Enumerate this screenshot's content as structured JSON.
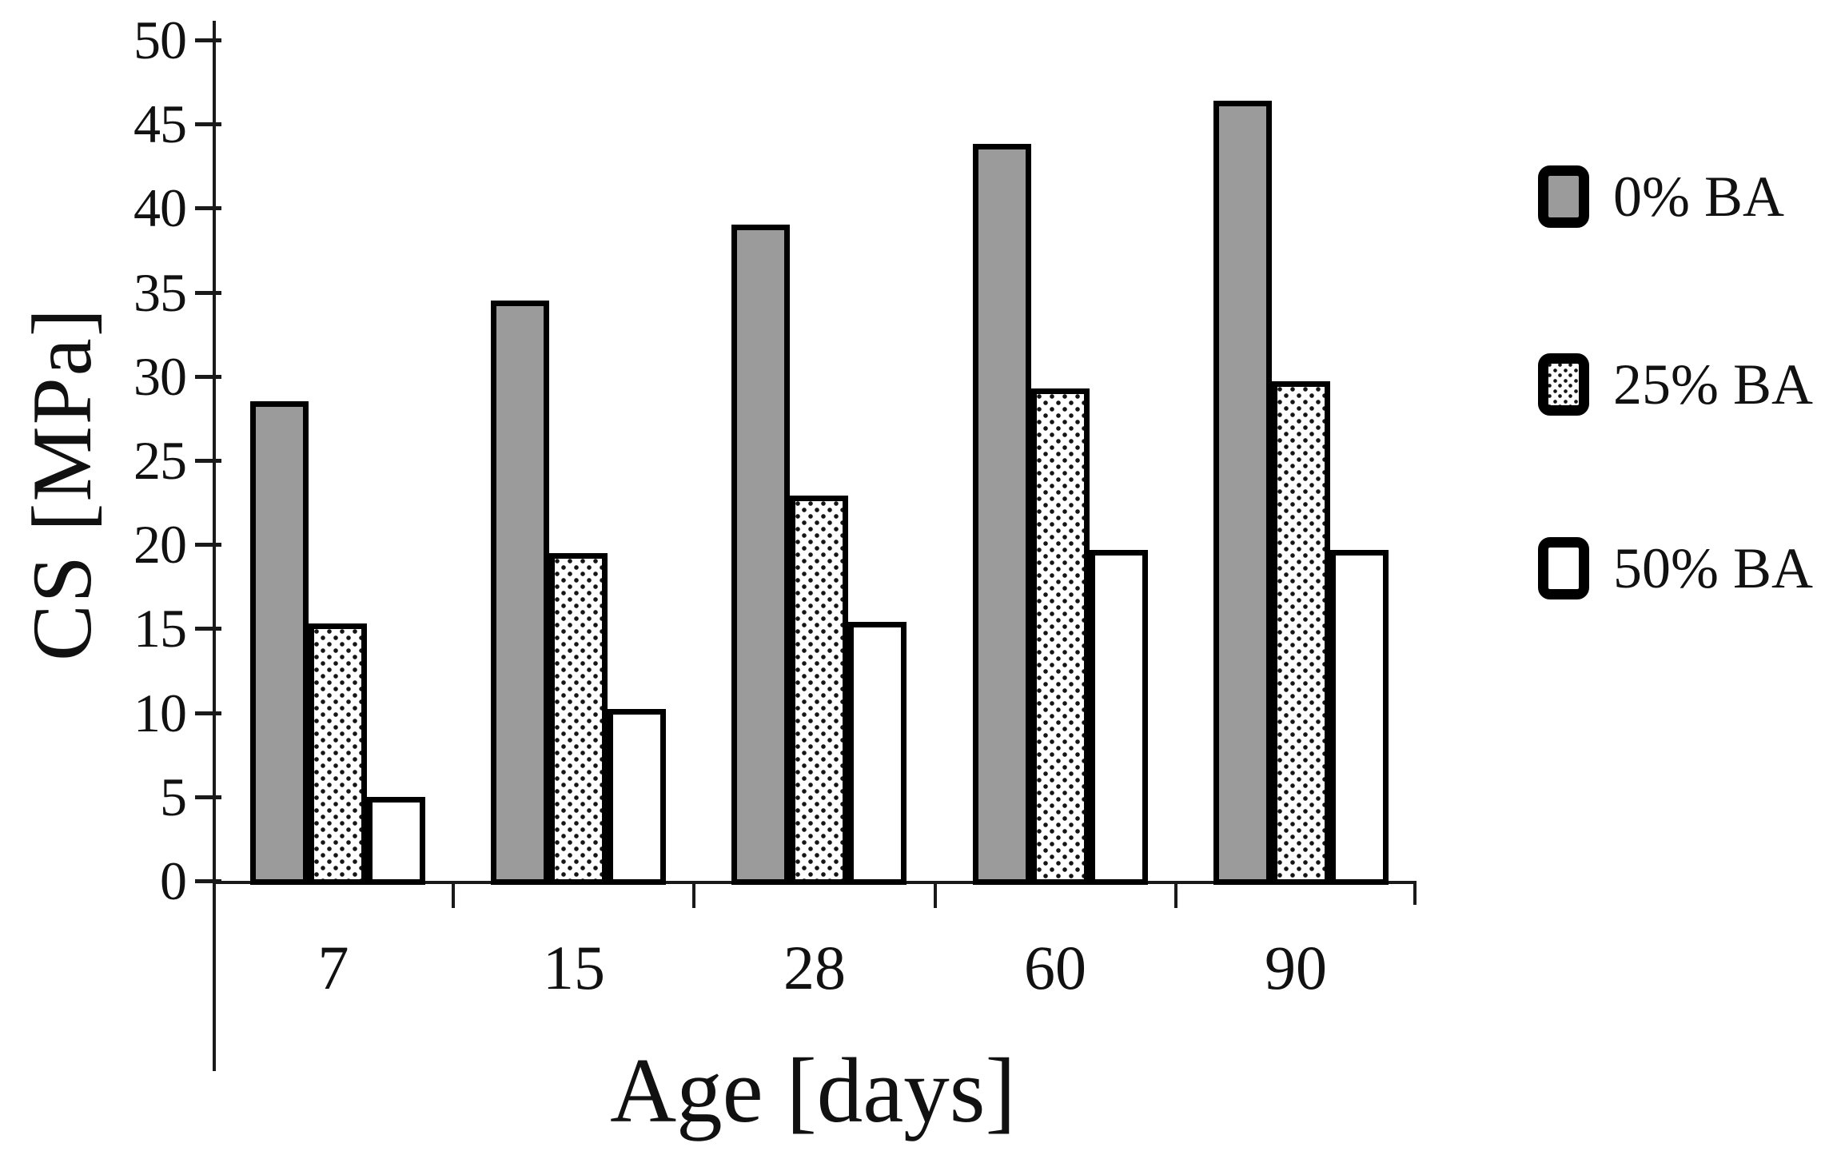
{
  "figure": {
    "background": "#ffffff",
    "text_color": "#111111"
  },
  "colors": {
    "bar_gray": "#9b9b9b",
    "bar_outline": "#000000",
    "dotted_fill": "#ffffff",
    "axis": "#1a1a1a"
  },
  "chart_data": {
    "type": "bar",
    "title": "",
    "xlabel": "Age [days]",
    "ylabel": "CS [MPa]",
    "categories": [
      "7",
      "15",
      "28",
      "60",
      "90"
    ],
    "series": [
      {
        "name": "0% BA",
        "pattern": "solid-gray",
        "values": [
          28.5,
          34.5,
          39.0,
          43.8,
          46.4
        ]
      },
      {
        "name": "25% BA",
        "pattern": "dotted",
        "values": [
          15.3,
          19.5,
          22.9,
          29.3,
          29.7
        ]
      },
      {
        "name": "50% BA",
        "pattern": "plain-white",
        "values": [
          5.0,
          10.2,
          15.4,
          19.7,
          19.7
        ]
      }
    ],
    "ylim": [
      0,
      50
    ],
    "ytick_step": 5,
    "yticks": [
      0,
      5,
      10,
      15,
      20,
      25,
      30,
      35,
      40,
      45,
      50
    ],
    "grid": false,
    "legend_position": "right",
    "legend_entries": [
      "0% BA",
      "25% BA",
      "50% BA"
    ]
  }
}
